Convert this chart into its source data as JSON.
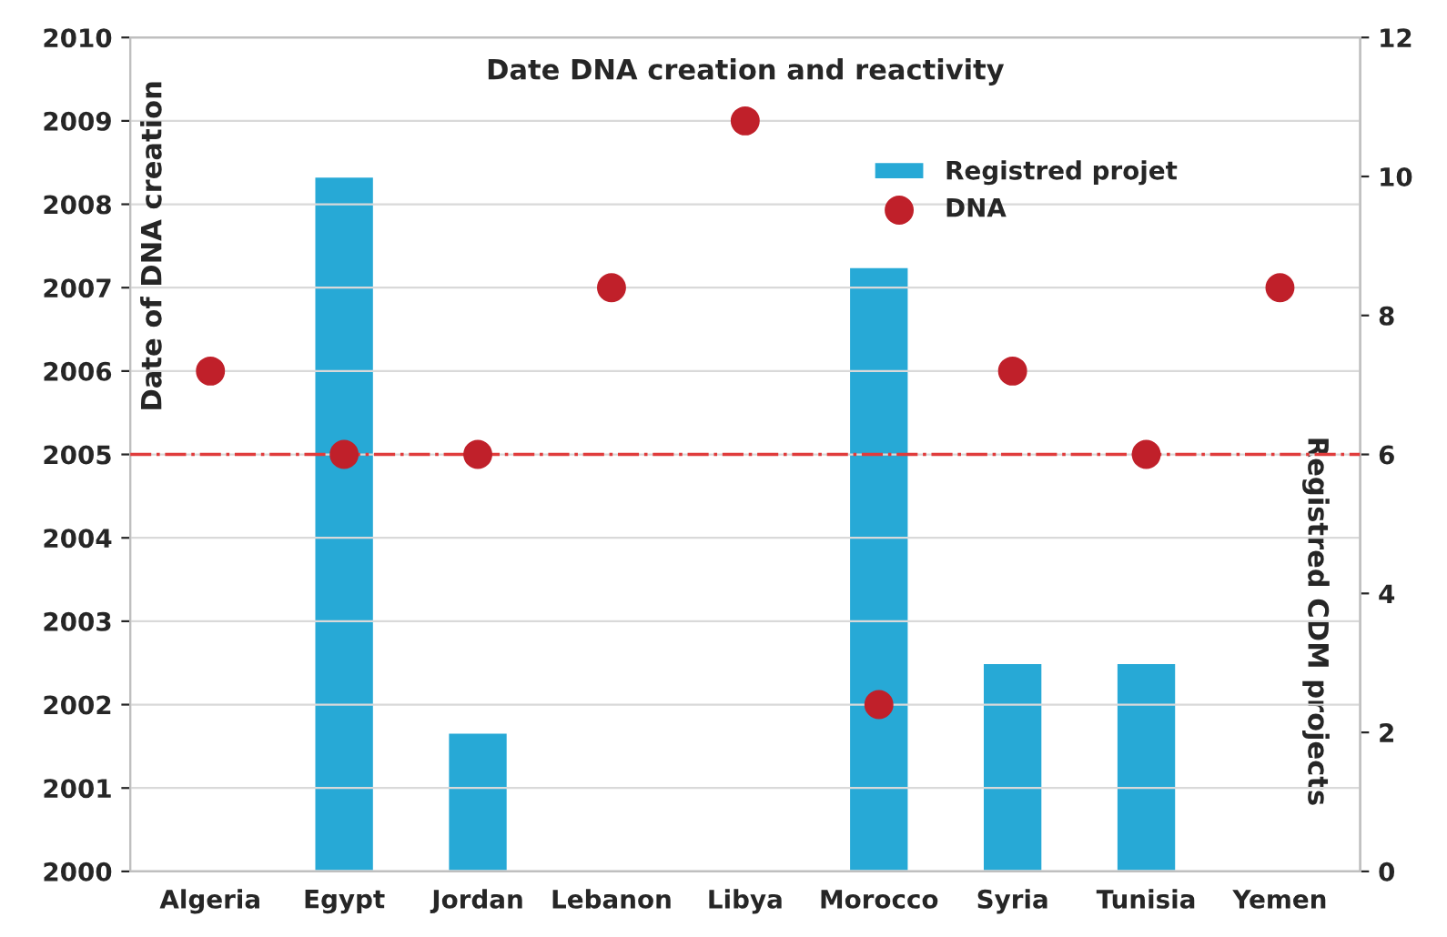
{
  "chart_data": {
    "type": "bar",
    "title": "Date DNA creation and reactivity",
    "ylabel": "Date of DNA creation",
    "y2label": "Registred CDM projects",
    "categories": [
      "Algeria",
      "Egypt",
      "Jordan",
      "Lebanon",
      "Libya",
      "Morocco",
      "Syria",
      "Tunisia",
      "Yemen"
    ],
    "series": [
      {
        "name": "Registred projet",
        "axis": "y2",
        "color": "#27a9d6",
        "values": [
          null,
          10,
          2,
          null,
          null,
          8.7,
          3,
          3,
          null
        ]
      },
      {
        "name": "DNA",
        "type": "scatter",
        "axis": "y",
        "color": "#c0202a",
        "marker": "circle",
        "values": [
          2006,
          2005,
          2005,
          2007,
          2009,
          2002,
          2006,
          2005,
          2007
        ]
      }
    ],
    "ylim": [
      2000,
      2010
    ],
    "yticks": [
      2000,
      2001,
      2002,
      2003,
      2004,
      2005,
      2006,
      2007,
      2008,
      2009,
      2010
    ],
    "y2lim": [
      0,
      12
    ],
    "y2ticks": [
      0,
      2,
      4,
      6,
      8,
      10,
      12
    ],
    "ref_lines": [
      {
        "axis": "y",
        "value": 2005,
        "color": "#e03c3c",
        "line_style": "dashdot"
      }
    ],
    "grid": "y",
    "legend": "top right"
  }
}
